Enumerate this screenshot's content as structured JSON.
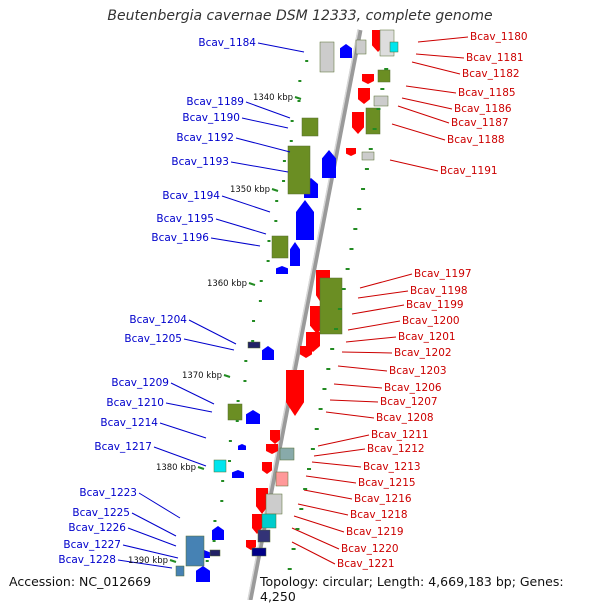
{
  "title": "Beutenbergia cavernae DSM 12333, complete genome",
  "footer": {
    "accession": "Accession: NC_012669",
    "topology": "Topology: circular; Length: 4,669,183 bp; Genes: 4,250"
  },
  "kbp_markers": [
    "1340 kbp",
    "1350 kbp",
    "1360 kbp",
    "1370 kbp",
    "1380 kbp",
    "1390 kbp"
  ],
  "colors": {
    "forward_cds": "#ff0000",
    "reverse_cds": "#0000ff",
    "gene_box": "#6b8e23",
    "left_label": "#0000cc",
    "right_label": "#cc0000",
    "backbone": "#9a9a9a",
    "tick": "#228b22"
  },
  "left_genes": [
    "Bcav_1184",
    "Bcav_1189",
    "Bcav_1190",
    "Bcav_1192",
    "Bcav_1193",
    "Bcav_1194",
    "Bcav_1195",
    "Bcav_1196",
    "Bcav_1204",
    "Bcav_1205",
    "Bcav_1209",
    "Bcav_1210",
    "Bcav_1214",
    "Bcav_1217",
    "Bcav_1223",
    "Bcav_1225",
    "Bcav_1226",
    "Bcav_1227",
    "Bcav_1228"
  ],
  "right_genes": [
    "Bcav_1180",
    "Bcav_1181",
    "Bcav_1182",
    "Bcav_1185",
    "Bcav_1186",
    "Bcav_1187",
    "Bcav_1188",
    "Bcav_1191",
    "Bcav_1197",
    "Bcav_1198",
    "Bcav_1199",
    "Bcav_1200",
    "Bcav_1201",
    "Bcav_1202",
    "Bcav_1203",
    "Bcav_1206",
    "Bcav_1207",
    "Bcav_1208",
    "Bcav_1211",
    "Bcav_1212",
    "Bcav_1213",
    "Bcav_1215",
    "Bcav_1216",
    "Bcav_1218",
    "Bcav_1219",
    "Bcav_1220",
    "Bcav_1221"
  ]
}
